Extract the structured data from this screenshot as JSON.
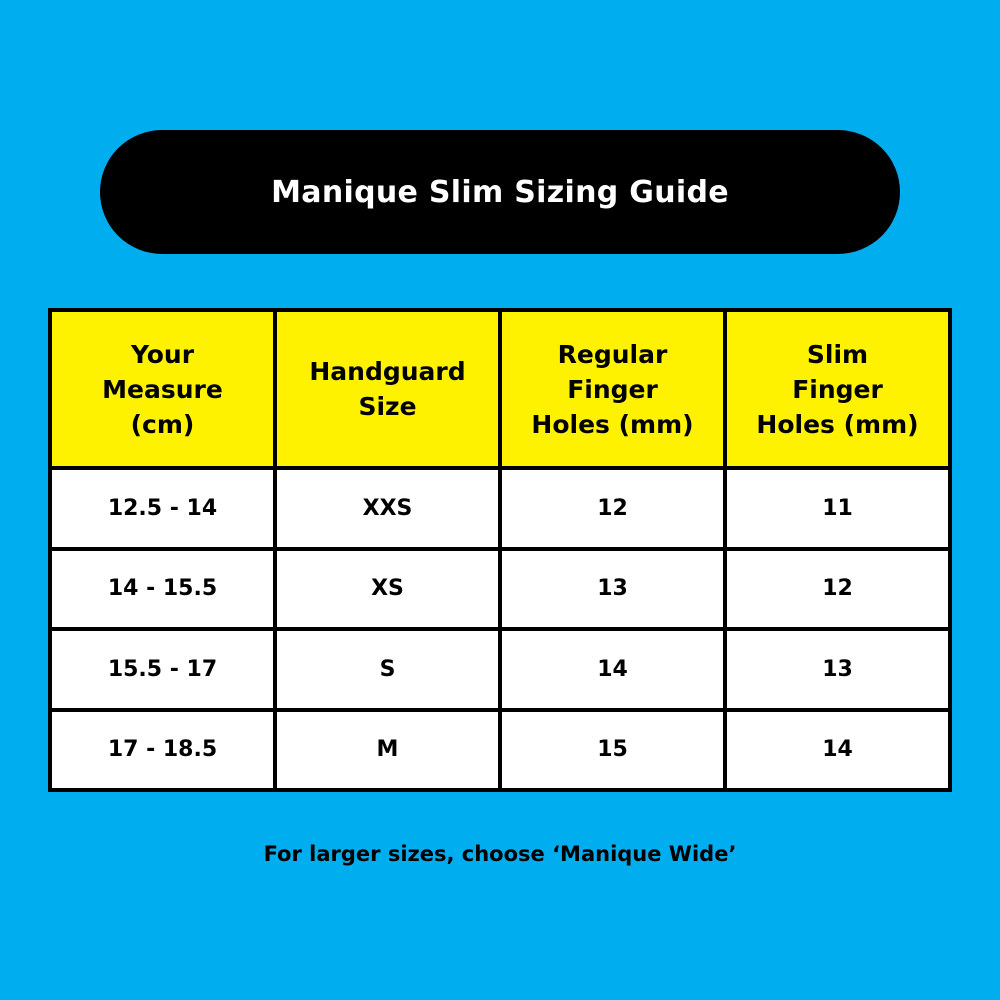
{
  "title": "Manique Slim Sizing Guide",
  "colors": {
    "background": "#00aeef",
    "header": "#fff200",
    "pill": "#000000"
  },
  "table": {
    "headers": [
      [
        "Your",
        "Measure",
        "(cm)"
      ],
      [
        "Handguard",
        "Size"
      ],
      [
        "Regular",
        "Finger",
        "Holes (mm)"
      ],
      [
        "Slim",
        "Finger",
        "Holes (mm)"
      ]
    ],
    "rows": [
      [
        "12.5 - 14",
        "XXS",
        "12",
        "11"
      ],
      [
        "14 - 15.5",
        "XS",
        "13",
        "12"
      ],
      [
        "15.5 - 17",
        "S",
        "14",
        "13"
      ],
      [
        "17 - 18.5",
        "M",
        "15",
        "14"
      ]
    ]
  },
  "footnote": "For larger sizes, choose ‘Manique Wide’"
}
